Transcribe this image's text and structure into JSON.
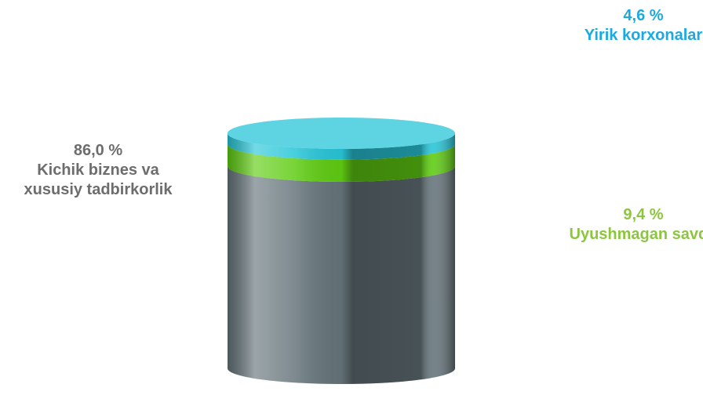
{
  "chart_data": {
    "type": "cylinder",
    "series": [
      {
        "name": "Kichik biznes va xususiy tadbirkorlik",
        "color": "#66757b",
        "label_color": "#6d6d6d",
        "values": [
          86.0
        ],
        "value_labels": [
          "86,0 %"
        ]
      },
      {
        "name": "Uyushmagan savdo",
        "color": "#5fcc12",
        "label_color": "#8cc63f",
        "values": [
          9.4
        ],
        "value_labels": [
          "9,4 %"
        ]
      },
      {
        "name": "Yirik korxonalar",
        "color": "#28c6d8",
        "label_color": "#1ba9e1",
        "values": [
          4.6
        ],
        "value_labels": [
          "4,6 %"
        ]
      }
    ]
  }
}
